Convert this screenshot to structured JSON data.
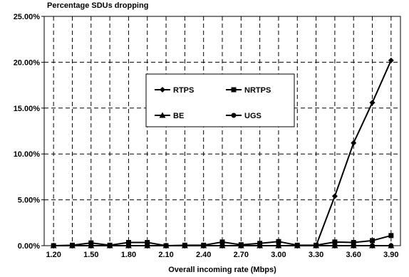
{
  "chart_data": {
    "type": "line",
    "title": "",
    "ylabel": "Percentage SDUs dropping",
    "xlabel": "Overall incoming rate (Mbps)",
    "x": [
      1.2,
      1.35,
      1.5,
      1.65,
      1.8,
      1.95,
      2.1,
      2.25,
      2.4,
      2.55,
      2.7,
      2.85,
      3.0,
      3.15,
      3.3,
      3.45,
      3.6,
      3.75,
      3.9
    ],
    "xticks": [
      "1.20",
      "1.50",
      "1.80",
      "2.10",
      "2.40",
      "2.70",
      "3.00",
      "3.30",
      "3.60",
      "3.90"
    ],
    "xlim": [
      1.125,
      3.975
    ],
    "yticks": [
      "0.00%",
      "5.00%",
      "10.00%",
      "15.00%",
      "20.00%",
      "25.00%"
    ],
    "ylim": [
      0,
      25
    ],
    "grid": true,
    "legend_position": "center-left",
    "series": [
      {
        "name": "RTPS",
        "marker": "diamond",
        "values": [
          0.0,
          0.0,
          0.0,
          0.0,
          0.0,
          0.0,
          0.0,
          0.0,
          0.0,
          0.0,
          0.0,
          0.0,
          0.0,
          0.0,
          0.0,
          5.4,
          11.2,
          15.6,
          20.2
        ]
      },
      {
        "name": "NRTPS",
        "marker": "square",
        "values": [
          0.0,
          0.05,
          0.3,
          0.05,
          0.35,
          0.35,
          0.0,
          0.05,
          0.05,
          0.4,
          0.1,
          0.25,
          0.45,
          0.05,
          0.05,
          0.4,
          0.35,
          0.55,
          1.1
        ]
      },
      {
        "name": "BE",
        "marker": "triangle",
        "values": [
          0.0,
          0.0,
          0.0,
          0.0,
          0.0,
          0.0,
          0.0,
          0.0,
          0.0,
          0.0,
          0.0,
          0.0,
          0.0,
          0.0,
          0.0,
          0.0,
          0.0,
          0.0,
          0.0
        ]
      },
      {
        "name": "UGS",
        "marker": "circle",
        "values": [
          0.0,
          0.0,
          0.0,
          0.0,
          0.0,
          0.0,
          0.0,
          0.0,
          0.0,
          0.0,
          0.0,
          0.0,
          0.0,
          0.0,
          0.0,
          0.0,
          0.0,
          0.0,
          0.0
        ]
      }
    ]
  }
}
